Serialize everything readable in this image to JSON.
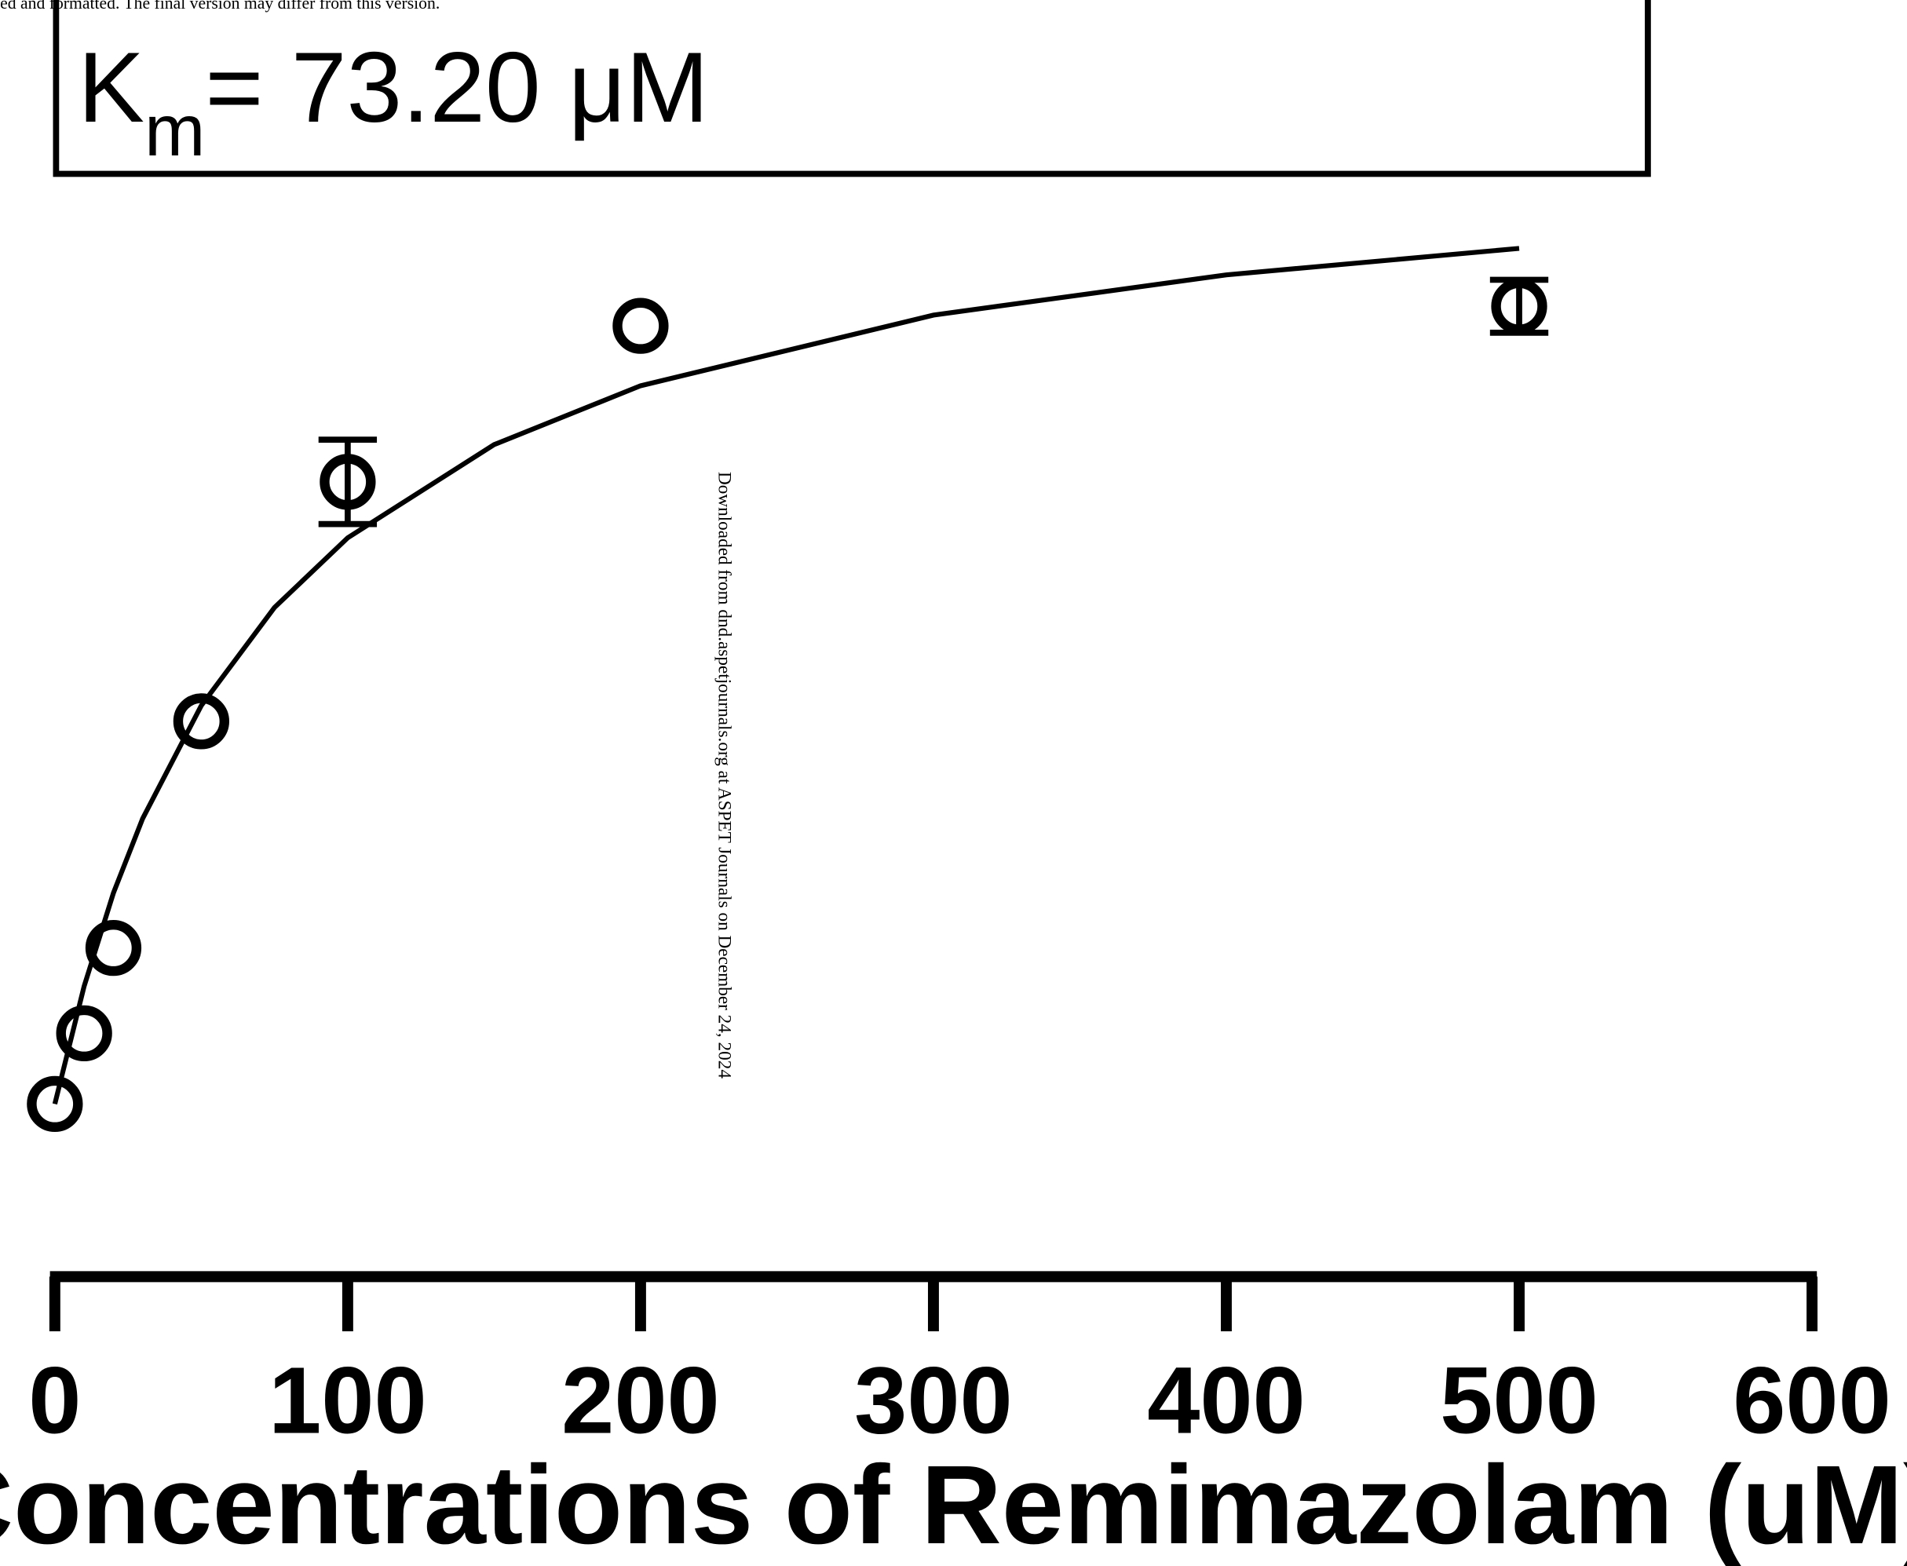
{
  "chart_data": {
    "type": "scatter",
    "header_note": "ed and formatted. The final version may differ from this version.",
    "annotation": {
      "symbol": "K",
      "subscript": "m",
      "text": "= 73.20 μM"
    },
    "watermark": "Downloaded from dnd.aspetjournals.org at ASPET Journals on December 24, 2024",
    "x_label": "Concentrations of Remimazolam (uM)",
    "xlim": [
      0,
      600
    ],
    "xticks": [
      0,
      100,
      200,
      300,
      400,
      500,
      600
    ],
    "ylim": [
      0,
      100
    ],
    "color": "#000000",
    "points": {
      "x": [
        0,
        10,
        20,
        50,
        100,
        200,
        500
      ],
      "values": [
        0,
        7.2,
        15.9,
        39.0,
        63.4,
        79.3,
        81.3
      ],
      "errors": [
        null,
        null,
        null,
        null,
        4.3,
        null,
        2.7
      ]
    },
    "fit": {
      "x": [
        0,
        10,
        20,
        30,
        50,
        75,
        100,
        150,
        200,
        300,
        400,
        500
      ],
      "values": [
        0,
        12.0,
        21.5,
        29.1,
        40.6,
        50.6,
        57.7,
        67.2,
        73.2,
        80.4,
        84.5,
        87.2
      ]
    }
  }
}
